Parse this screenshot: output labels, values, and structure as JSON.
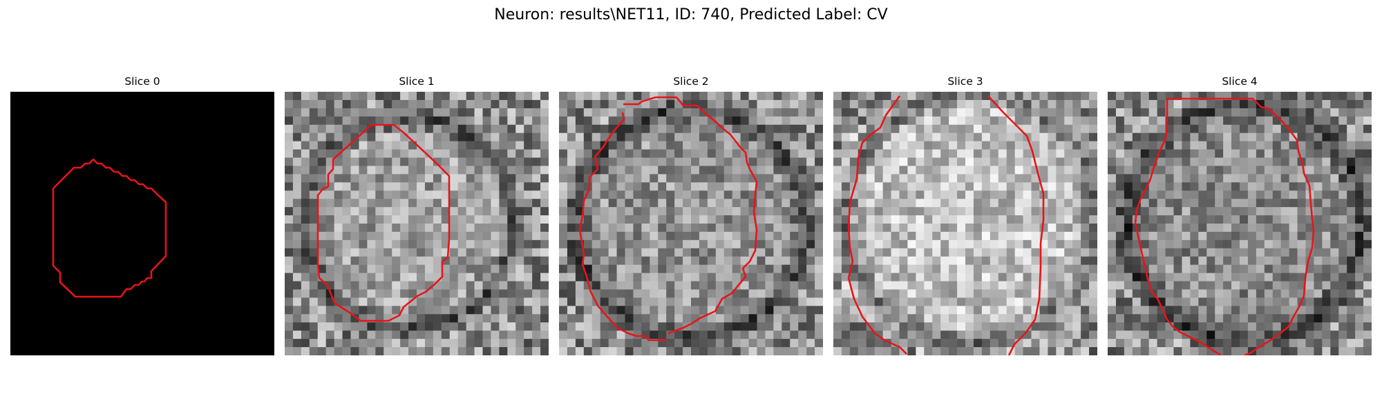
{
  "figure": {
    "title": "Neuron: results\\NET11, ID: 740, Predicted Label: CV"
  },
  "slices": [
    {
      "label": "Slice 0"
    },
    {
      "label": "Slice 1"
    },
    {
      "label": "Slice 2"
    },
    {
      "label": "Slice 3"
    },
    {
      "label": "Slice 4"
    }
  ],
  "contour_color": "#e8141a"
}
